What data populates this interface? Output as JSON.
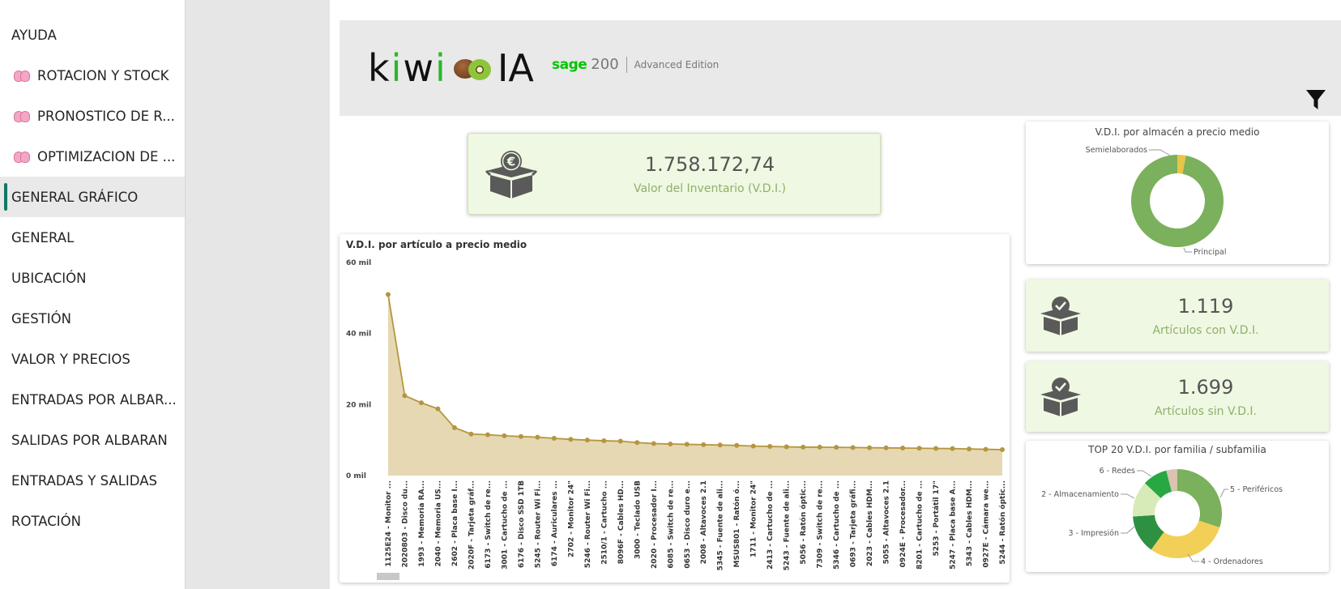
{
  "sidebar": {
    "items": [
      {
        "label": "AYUDA",
        "icon": null,
        "active": false
      },
      {
        "label": "ROTACION Y STOCK",
        "icon": "brain-icon",
        "active": false
      },
      {
        "label": "PRONOSTICO DE R...",
        "icon": "brain-icon",
        "active": false
      },
      {
        "label": "OPTIMIZACION DE ...",
        "icon": "brain-icon",
        "active": false
      },
      {
        "label": "GENERAL GRÁFICO",
        "icon": null,
        "active": true
      },
      {
        "label": "GENERAL",
        "icon": null,
        "active": false
      },
      {
        "label": "UBICACIÓN",
        "icon": null,
        "active": false
      },
      {
        "label": "GESTIÓN",
        "icon": null,
        "active": false
      },
      {
        "label": "VALOR Y PRECIOS",
        "icon": null,
        "active": false
      },
      {
        "label": "ENTRADAS POR ALBAR...",
        "icon": null,
        "active": false
      },
      {
        "label": "SALIDAS POR ALBARAN",
        "icon": null,
        "active": false
      },
      {
        "label": "ENTRADAS Y SALIDAS",
        "icon": null,
        "active": false
      },
      {
        "label": "ROTACIÓN",
        "icon": null,
        "active": false
      }
    ],
    "accent_color": "#117865"
  },
  "banner": {
    "logo_k": "k",
    "logo_i1": "i",
    "logo_w": "w",
    "logo_i2": "i",
    "logo_ia": "IA",
    "sage_name": "sage",
    "sage_version": "200",
    "sage_edition": "Advanced Edition"
  },
  "kpis": {
    "inventory": {
      "value": "1.758.172,74",
      "label": "Valor del Inventario (V.D.I.)"
    },
    "with_vdi": {
      "value": "1.119",
      "label": "Artículos con V.D.I."
    },
    "without_vdi": {
      "value": "1.699",
      "label": "Artículos sin V.D.I."
    }
  },
  "chart_data": [
    {
      "type": "area",
      "title": "V.D.I. por artículo a precio medio",
      "xlabel": "",
      "ylabel": "",
      "ylim": [
        0,
        60000
      ],
      "yticks": [
        0,
        20000,
        40000,
        60000
      ],
      "ytick_labels": [
        "0 mil",
        "20 mil",
        "40 mil",
        "60 mil"
      ],
      "color": "#b5963f",
      "categories": [
        "1125E24 - Monitor ...",
        "2020803 - Disco du...",
        "1993 - Memoria RA...",
        "2040 - Memoria US...",
        "2602 - Placa base I...",
        "2020F - Tarjeta gráf...",
        "6173 - Switch de re...",
        "3001 - Cartucho de ...",
        "6176 - Disco SSD 1TB",
        "5245 - Router Wi Fi...",
        "6174 - Auriculares ...",
        "2702 - Monitor 24\"",
        "5246 - Router Wi Fi...",
        "2510/1 - Cartucho ...",
        "8096F - Cables HD...",
        "3000 - Teclado USB",
        "2020 - Procesador I...",
        "6085 - Switch de re...",
        "0653 - Disco duro e...",
        "2008 - Altavoces 2.1",
        "5345 - Fuente de ali...",
        "MSUS801 - Ratón ó...",
        "1711 - Monitor 24\"",
        "2413 - Cartucho de ...",
        "5243 - Fuente de ali...",
        "5056 - Ratón óptic...",
        "7309 - Switch de re...",
        "5346 - Cartucho de ...",
        "0693 - Tarjeta gráfi...",
        "2023 - Cables HDM...",
        "5055 - Altavoces 2.1",
        "0924E - Procesador...",
        "8201 - Cartucho de ...",
        "5253 - Portátil 17\"",
        "5247 - Placa base A...",
        "5343 - Cables HDM...",
        "0927E - Cámara we...",
        "5244 - Ratón óptic..."
      ],
      "values": [
        51000,
        22500,
        20500,
        18800,
        13500,
        11700,
        11500,
        11200,
        11000,
        10800,
        10500,
        10200,
        10000,
        9800,
        9700,
        9300,
        9000,
        8900,
        8800,
        8700,
        8600,
        8500,
        8300,
        8200,
        8100,
        8000,
        8000,
        7950,
        7900,
        7850,
        7800,
        7750,
        7700,
        7650,
        7600,
        7500,
        7400,
        7300
      ]
    },
    {
      "type": "pie",
      "title": "V.D.I. por almacén a precio medio",
      "labels": [
        "Semielaborados",
        "Principal"
      ],
      "values": [
        3,
        97
      ],
      "colors": [
        "#e8c547",
        "#7bb05c"
      ]
    },
    {
      "type": "pie",
      "title": "TOP 20 V.D.I. por familia / subfamilia",
      "labels": [
        "5 - Periféricos",
        "4 - Ordenadores",
        "3 - Impresión",
        "2 - Almacenamiento",
        "6 - Redes",
        ""
      ],
      "values": [
        30,
        30,
        14,
        13,
        9,
        4
      ],
      "colors": [
        "#7bb05c",
        "#f2cf56",
        "#2e9142",
        "#d7ebb8",
        "#27a843",
        "#d8c4b0"
      ]
    }
  ]
}
